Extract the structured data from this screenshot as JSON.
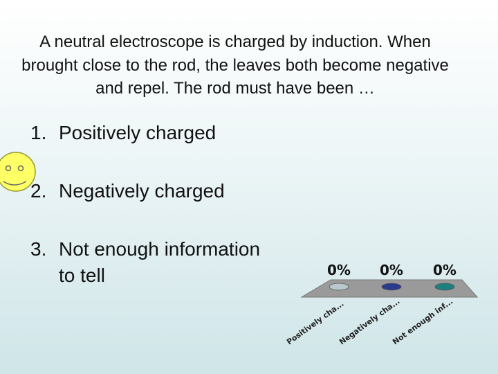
{
  "question": "A neutral electroscope is charged by induction. When brought close to the rod, the leaves both become negative and repel.  The rod must have been …",
  "options": [
    {
      "number": "1.",
      "text": "Positively charged"
    },
    {
      "number": "2.",
      "text": "Negatively charged"
    },
    {
      "number": "3.",
      "text": "Not enough information to tell"
    }
  ],
  "chart_data": {
    "type": "bar",
    "categories": [
      "Positively cha...",
      "Negatively cha...",
      "Not enough inf..."
    ],
    "values": [
      0,
      0,
      0
    ],
    "value_labels": [
      "0%",
      "0%",
      "0%"
    ],
    "colors": [
      "#b8c8cc",
      "#2a3a8c",
      "#1d7f7f"
    ],
    "ylim": [
      0,
      100
    ]
  }
}
